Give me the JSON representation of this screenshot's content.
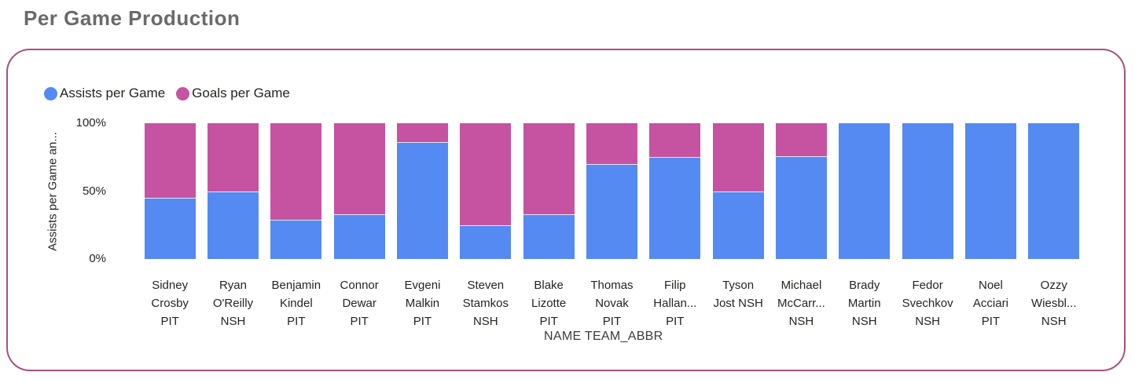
{
  "page": {
    "title": "Per Game Production"
  },
  "colors": {
    "assists_blue": "#548af2",
    "goals_pink": "#c553a1",
    "card_border": "#a6517e",
    "title_gray": "#6a6a6a",
    "text": "#252423",
    "segment_separator": "#e3e3f2"
  },
  "legend": [
    {
      "label": "Assists per Game",
      "color": "#548af2"
    },
    {
      "label": "Goals per Game",
      "color": "#c553a1"
    }
  ],
  "chart_data": {
    "type": "bar",
    "stacked": "100%",
    "title": "Per Game Production",
    "xlabel": "NAME TEAM_ABBR",
    "ylabel": "Assists per Game an...",
    "ylim": [
      0,
      100
    ],
    "y_ticks": [
      "100%",
      "50%",
      "0%"
    ],
    "grid": false,
    "legend_position": "top-left",
    "categories": [
      "Sidney Crosby PIT",
      "Ryan O'Reilly NSH",
      "Benjamin Kindel PIT",
      "Connor Dewar PIT",
      "Evgeni Malkin PIT",
      "Steven Stamkos NSH",
      "Blake Lizotte PIT",
      "Thomas Novak PIT",
      "Filip Hallan... PIT",
      "Tyson Jost NSH",
      "Michael McCarr... NSH",
      "Brady Martin NSH",
      "Fedor Svechkov NSH",
      "Noel Acciari PIT",
      "Ozzy Wiesbl... NSH"
    ],
    "category_display": [
      "Sidney\nCrosby\nPIT",
      "Ryan\nO'Reilly\nNSH",
      "Benjamin\nKindel\nPIT",
      "Connor\nDewar\nPIT",
      "Evgeni\nMalkin\nPIT",
      "Steven\nStamkos\nNSH",
      "Blake\nLizotte\nPIT",
      "Thomas\nNovak\nPIT",
      "Filip\nHallan...\nPIT",
      "Tyson\nJost NSH",
      "Michael\nMcCarr...\nNSH",
      "Brady\nMartin\nNSH",
      "Fedor\nSvechkov\nNSH",
      "Noel\nAcciari\nPIT",
      "Ozzy\nWiesbl...\nNSH"
    ],
    "series": [
      {
        "name": "Assists per Game",
        "color": "#548af2",
        "values": [
          45,
          50,
          29,
          33,
          86,
          25,
          33,
          70,
          75,
          50,
          76,
          100,
          100,
          100,
          100
        ]
      },
      {
        "name": "Goals per Game",
        "color": "#c553a1",
        "values": [
          55,
          50,
          71,
          67,
          14,
          75,
          67,
          30,
          25,
          50,
          24,
          0,
          0,
          0,
          0
        ]
      }
    ]
  }
}
